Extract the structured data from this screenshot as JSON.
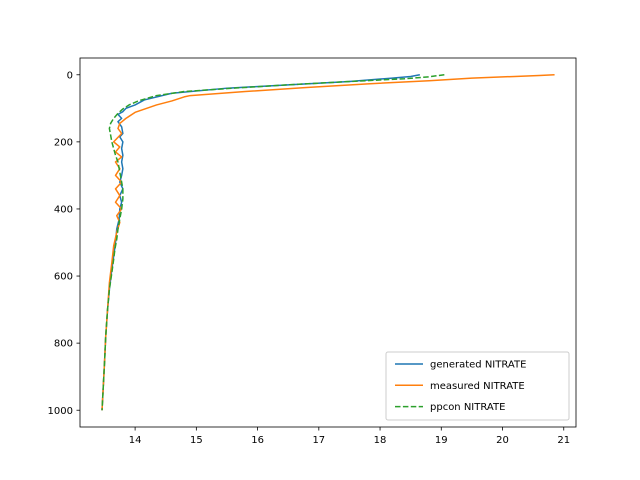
{
  "chart_data": {
    "type": "line",
    "title": "",
    "xlabel": "",
    "ylabel": "",
    "xlim": [
      13.1,
      21.2
    ],
    "ylim": [
      1050,
      -50
    ],
    "y_inverted": true,
    "xticks": [
      14,
      15,
      16,
      17,
      18,
      19,
      20,
      21
    ],
    "yticks": [
      0,
      200,
      400,
      600,
      800,
      1000
    ],
    "legend_position": "lower-right",
    "series": [
      {
        "name": "generated NITRATE",
        "color": "#1f77b4",
        "dash": "solid",
        "points": [
          [
            18.65,
            0
          ],
          [
            18.5,
            5
          ],
          [
            18.2,
            10
          ],
          [
            17.5,
            20
          ],
          [
            16.5,
            30
          ],
          [
            15.5,
            40
          ],
          [
            14.6,
            55
          ],
          [
            14.15,
            75
          ],
          [
            14.0,
            90
          ],
          [
            13.85,
            100
          ],
          [
            13.8,
            110
          ],
          [
            13.72,
            118
          ],
          [
            13.78,
            130
          ],
          [
            13.72,
            140
          ],
          [
            13.78,
            155
          ],
          [
            13.8,
            175
          ],
          [
            13.75,
            185
          ],
          [
            13.8,
            200
          ],
          [
            13.78,
            220
          ],
          [
            13.8,
            240
          ],
          [
            13.78,
            260
          ],
          [
            13.8,
            280
          ],
          [
            13.78,
            300
          ],
          [
            13.75,
            320
          ],
          [
            13.8,
            340
          ],
          [
            13.75,
            360
          ],
          [
            13.78,
            380
          ],
          [
            13.75,
            400
          ],
          [
            13.74,
            430
          ],
          [
            13.7,
            460
          ],
          [
            13.68,
            500
          ],
          [
            13.65,
            540
          ],
          [
            13.62,
            580
          ],
          [
            13.58,
            640
          ],
          [
            13.55,
            700
          ],
          [
            13.52,
            780
          ],
          [
            13.5,
            860
          ],
          [
            13.48,
            930
          ],
          [
            13.46,
            1000
          ]
        ]
      },
      {
        "name": "measured NITRATE",
        "color": "#ff7f0e",
        "dash": "solid",
        "points": [
          [
            20.85,
            0
          ],
          [
            20.6,
            2
          ],
          [
            20.2,
            5
          ],
          [
            19.5,
            10
          ],
          [
            18.8,
            18
          ],
          [
            17.8,
            27
          ],
          [
            16.8,
            38
          ],
          [
            15.8,
            50
          ],
          [
            14.9,
            62
          ],
          [
            14.8,
            66
          ],
          [
            14.6,
            78
          ],
          [
            14.35,
            90
          ],
          [
            14.0,
            112
          ],
          [
            13.85,
            130
          ],
          [
            13.75,
            145
          ],
          [
            13.72,
            160
          ],
          [
            13.78,
            175
          ],
          [
            13.65,
            200
          ],
          [
            13.75,
            215
          ],
          [
            13.68,
            230
          ],
          [
            13.78,
            245
          ],
          [
            13.68,
            260
          ],
          [
            13.75,
            280
          ],
          [
            13.68,
            300
          ],
          [
            13.78,
            320
          ],
          [
            13.68,
            340
          ],
          [
            13.75,
            360
          ],
          [
            13.68,
            380
          ],
          [
            13.78,
            400
          ],
          [
            13.7,
            420
          ],
          [
            13.75,
            440
          ],
          [
            13.7,
            470
          ],
          [
            13.65,
            510
          ],
          [
            13.62,
            560
          ],
          [
            13.58,
            620
          ],
          [
            13.55,
            700
          ],
          [
            13.52,
            780
          ],
          [
            13.5,
            860
          ],
          [
            13.48,
            930
          ],
          [
            13.46,
            1000
          ]
        ]
      },
      {
        "name": "ppcon NITRATE",
        "color": "#2ca02c",
        "dash": "dashed",
        "points": [
          [
            19.05,
            0
          ],
          [
            18.8,
            6
          ],
          [
            18.4,
            12
          ],
          [
            17.5,
            20
          ],
          [
            16.5,
            30
          ],
          [
            15.6,
            40
          ],
          [
            14.8,
            50
          ],
          [
            14.35,
            62
          ],
          [
            14.05,
            78
          ],
          [
            13.9,
            90
          ],
          [
            13.8,
            102
          ],
          [
            13.72,
            115
          ],
          [
            13.65,
            130
          ],
          [
            13.6,
            145
          ],
          [
            13.58,
            160
          ],
          [
            13.6,
            180
          ],
          [
            13.62,
            200
          ],
          [
            13.65,
            220
          ],
          [
            13.68,
            240
          ],
          [
            13.72,
            260
          ],
          [
            13.74,
            280
          ],
          [
            13.76,
            300
          ],
          [
            13.78,
            320
          ],
          [
            13.8,
            340
          ],
          [
            13.8,
            370
          ],
          [
            13.78,
            400
          ],
          [
            13.75,
            430
          ],
          [
            13.72,
            460
          ],
          [
            13.7,
            490
          ],
          [
            13.67,
            520
          ],
          [
            13.65,
            550
          ],
          [
            13.62,
            590
          ],
          [
            13.58,
            640
          ],
          [
            13.55,
            700
          ],
          [
            13.52,
            780
          ],
          [
            13.5,
            860
          ],
          [
            13.48,
            930
          ],
          [
            13.46,
            1000
          ]
        ]
      }
    ]
  }
}
